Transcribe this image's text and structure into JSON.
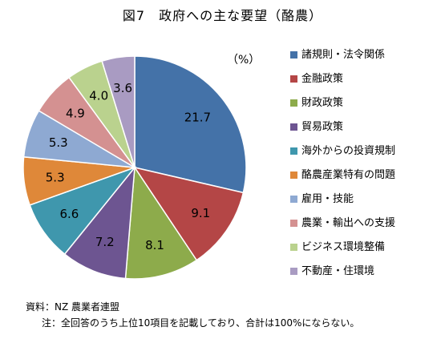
{
  "title": "図7　政府への主な要望（酪農）",
  "unit": "（%）",
  "chart_data": {
    "type": "pie",
    "categories": [
      "諸規則・法令関係",
      "金融政策",
      "財政政策",
      "貿易政策",
      "海外からの投資規制",
      "酪農産業特有の問題",
      "雇用・技能",
      "農業・輸出への支援",
      "ビジネス環境整備",
      "不動産・住環境"
    ],
    "values": [
      21.7,
      9.1,
      8.1,
      7.2,
      6.6,
      5.3,
      5.3,
      4.9,
      4.0,
      3.6
    ],
    "labels": [
      "21.7",
      "9.1",
      "8.1",
      "7.2",
      "6.6",
      "5.3",
      "5.3",
      "4.9",
      "4.0",
      "3.6"
    ],
    "colors": [
      "#4472a8",
      "#b44646",
      "#8dab4b",
      "#6d5591",
      "#3f97ad",
      "#df8839",
      "#8ea9d2",
      "#d49191",
      "#bad28e",
      "#a99bc2"
    ],
    "legend_position": "right"
  },
  "source": "資料：NZ 農業者連盟",
  "note": "注：全回答のうち上位10項目を記載しており、合計は100%にならない。"
}
